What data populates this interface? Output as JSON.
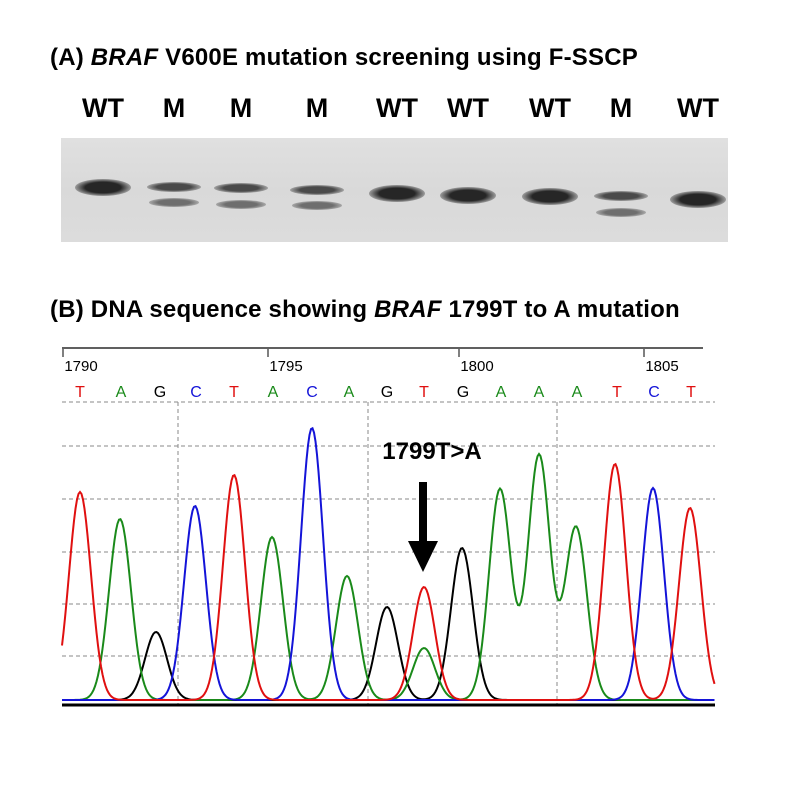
{
  "panel_a": {
    "title_prefix": "(A) ",
    "title_gene": "BRAF",
    "title_rest": " V600E mutation screening using F-SSCP",
    "lanes": [
      {
        "label": "WT",
        "genotype": "wild-type"
      },
      {
        "label": "M",
        "genotype": "mutant"
      },
      {
        "label": "M",
        "genotype": "mutant"
      },
      {
        "label": "M",
        "genotype": "mutant"
      },
      {
        "label": "WT",
        "genotype": "wild-type"
      },
      {
        "label": "WT",
        "genotype": "wild-type"
      },
      {
        "label": "WT",
        "genotype": "wild-type"
      },
      {
        "label": "M",
        "genotype": "mutant"
      },
      {
        "label": "WT",
        "genotype": "wild-type"
      }
    ]
  },
  "panel_b": {
    "title_prefix": "(B) DNA sequence showing ",
    "title_gene": "BRAF",
    "title_rest": " 1799T to A mutation",
    "position_labels": [
      "1790",
      "1795",
      "1800",
      "1805"
    ],
    "bases": [
      "T",
      "A",
      "G",
      "C",
      "T",
      "A",
      "C",
      "A",
      "G",
      "T",
      "G",
      "A",
      "A",
      "A",
      "T",
      "C",
      "T"
    ],
    "base_colors": {
      "A": "#1a8a1a",
      "C": "#1414d8",
      "G": "#000000",
      "T": "#e01010"
    },
    "mutation_label": "1799T>A"
  }
}
